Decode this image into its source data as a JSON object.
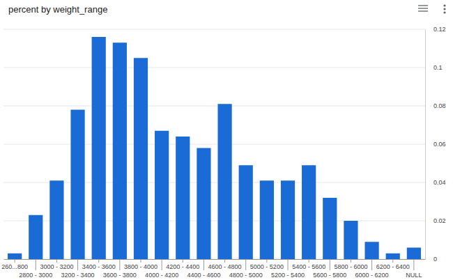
{
  "chart_data": {
    "type": "bar",
    "title": "percent by weight_range",
    "categories": [
      "260...800",
      "2800 - 3000",
      "3000 - 3200",
      "3200 - 3400",
      "3400 - 3600",
      "3600 - 3800",
      "3800 - 4000",
      "4000 - 4200",
      "4200 - 4400",
      "4400 - 4600",
      "4600 - 4800",
      "4800 - 5000",
      "5000 - 5200",
      "5200 - 5400",
      "5400 - 5600",
      "5600 - 5800",
      "5800 - 6000",
      "6000 - 6200",
      "6200 - 6400",
      "NULL"
    ],
    "values": [
      0.003,
      0.023,
      0.041,
      0.078,
      0.116,
      0.113,
      0.105,
      0.067,
      0.064,
      0.058,
      0.081,
      0.049,
      0.041,
      0.041,
      0.049,
      0.032,
      0.02,
      0.009,
      0.003,
      0.006
    ],
    "color": "#1a6bd6",
    "ylim": [
      0,
      0.12
    ],
    "yticks": [
      0,
      0.02,
      0.04,
      0.06,
      0.08,
      0.1,
      0.12
    ],
    "grid": true
  }
}
